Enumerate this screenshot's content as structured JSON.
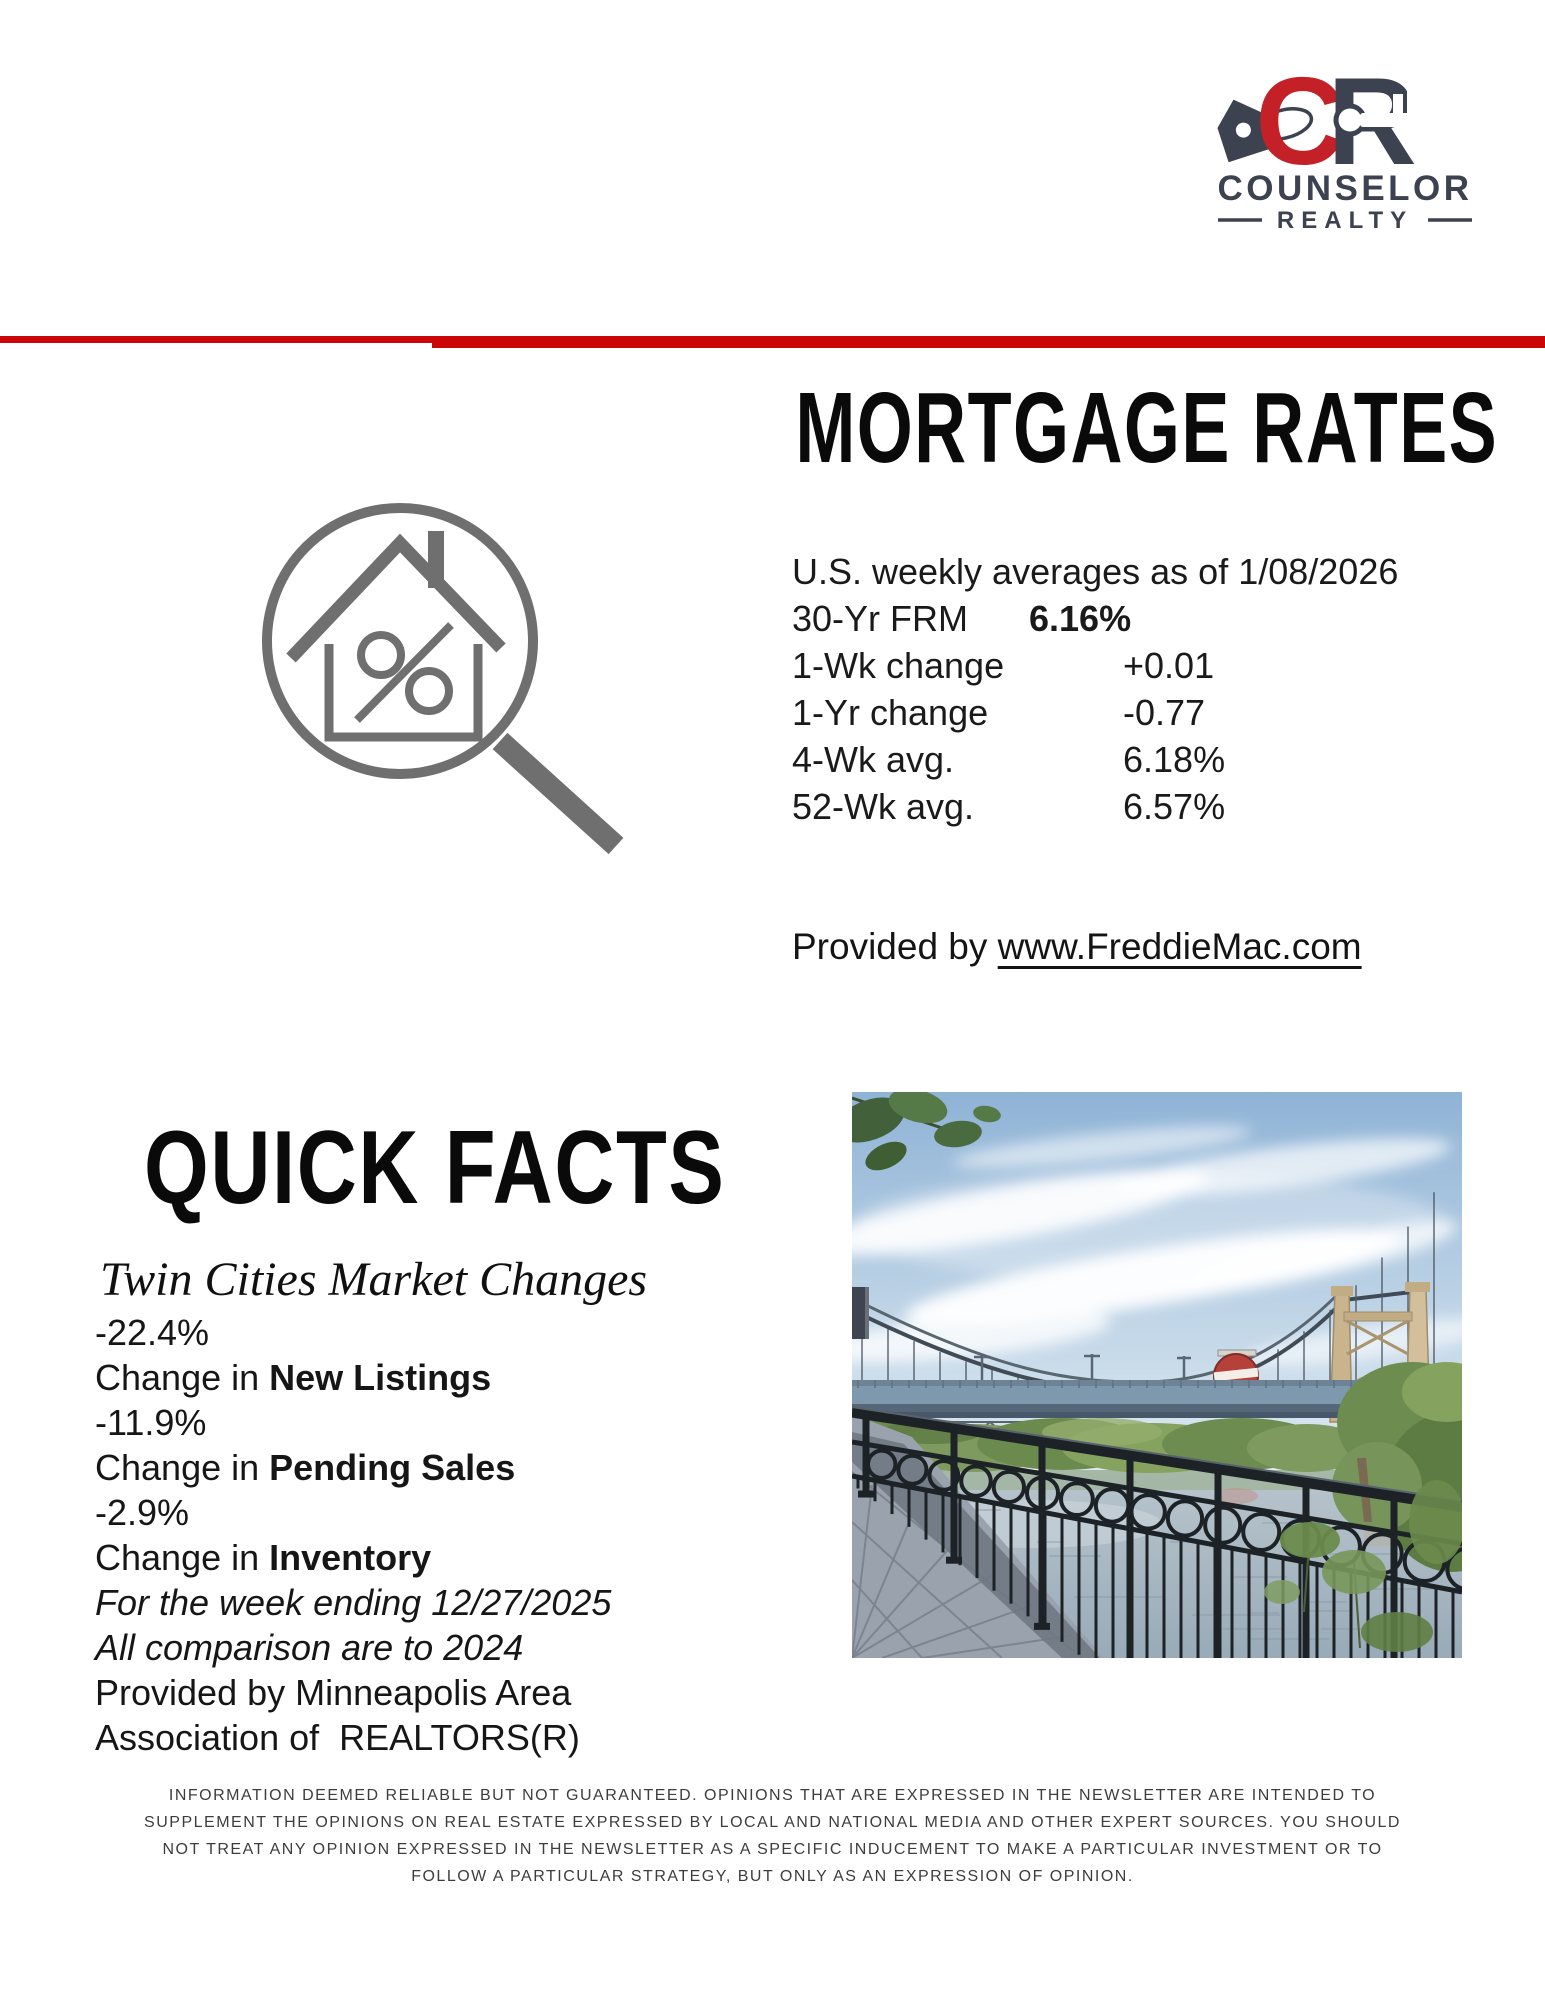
{
  "logo": {
    "monogram_c": "C",
    "monogram_r": "R",
    "name": "COUNSELOR",
    "subname": "REALTY",
    "red": "#c32127",
    "navy": "#3c4250"
  },
  "mortgage": {
    "title": "MORTGAGE RATES",
    "intro": "U.S. weekly averages as of 1/08/2026",
    "frm_label": "30-Yr FRM",
    "frm_value": "6.16%",
    "rows": [
      {
        "label": "1-Wk change",
        "value": "+0.01"
      },
      {
        "label": "1-Yr change",
        "value": "-0.77"
      },
      {
        "label": "4-Wk avg.",
        "value": "6.18%"
      },
      {
        "label": "52-Wk avg.",
        "value": "6.57%"
      }
    ],
    "provided_prefix": "Provided by ",
    "provided_link": "www.FreddieMac.com"
  },
  "quick_facts": {
    "title": "QUICK FACTS",
    "subtitle": "Twin Cities Market Changes",
    "stats": [
      {
        "value": "-22.4%",
        "label_prefix": "Change in ",
        "label_bold": "New Listings"
      },
      {
        "value": "-11.9%",
        "label_prefix": "Change in ",
        "label_bold": "Pending Sales"
      },
      {
        "value": "-2.9%",
        "label_prefix": "Change in ",
        "label_bold": "Inventory"
      }
    ],
    "notes_italic": [
      "For the week ending 12/27/2025",
      "All comparison are to 2024"
    ],
    "notes_regular": [
      "Provided by Minneapolis Area",
      "Association of  REALTORS(R)"
    ]
  },
  "photo": {
    "description": "Riverfront walkway with black iron railing overlooking a river and a suspension bridge with a round Grain Belt Beer sign"
  },
  "disclaimer": {
    "lines": [
      "INFORMATION DEEMED RELIABLE BUT NOT GUARANTEED. OPINIONS THAT ARE EXPRESSED IN THE NEWSLETTER ARE INTENDED TO",
      "SUPPLEMENT THE OPINIONS ON REAL ESTATE EXPRESSED BY LOCAL AND NATIONAL MEDIA AND OTHER EXPERT SOURCES. YOU SHOULD",
      "NOT TREAT ANY OPINION EXPRESSED IN THE NEWSLETTER AS A SPECIFIC INDUCEMENT TO MAKE A PARTICULAR INVESTMENT OR TO",
      "FOLLOW A PARTICULAR STRATEGY, BUT ONLY AS AN EXPRESSION OF OPINION."
    ]
  },
  "colors": {
    "accent_red": "#cb0606",
    "logo_red": "#c32127",
    "logo_navy": "#3c4250",
    "icon_gray": "#6f6f6f",
    "text_black": "#0a0a0a"
  }
}
